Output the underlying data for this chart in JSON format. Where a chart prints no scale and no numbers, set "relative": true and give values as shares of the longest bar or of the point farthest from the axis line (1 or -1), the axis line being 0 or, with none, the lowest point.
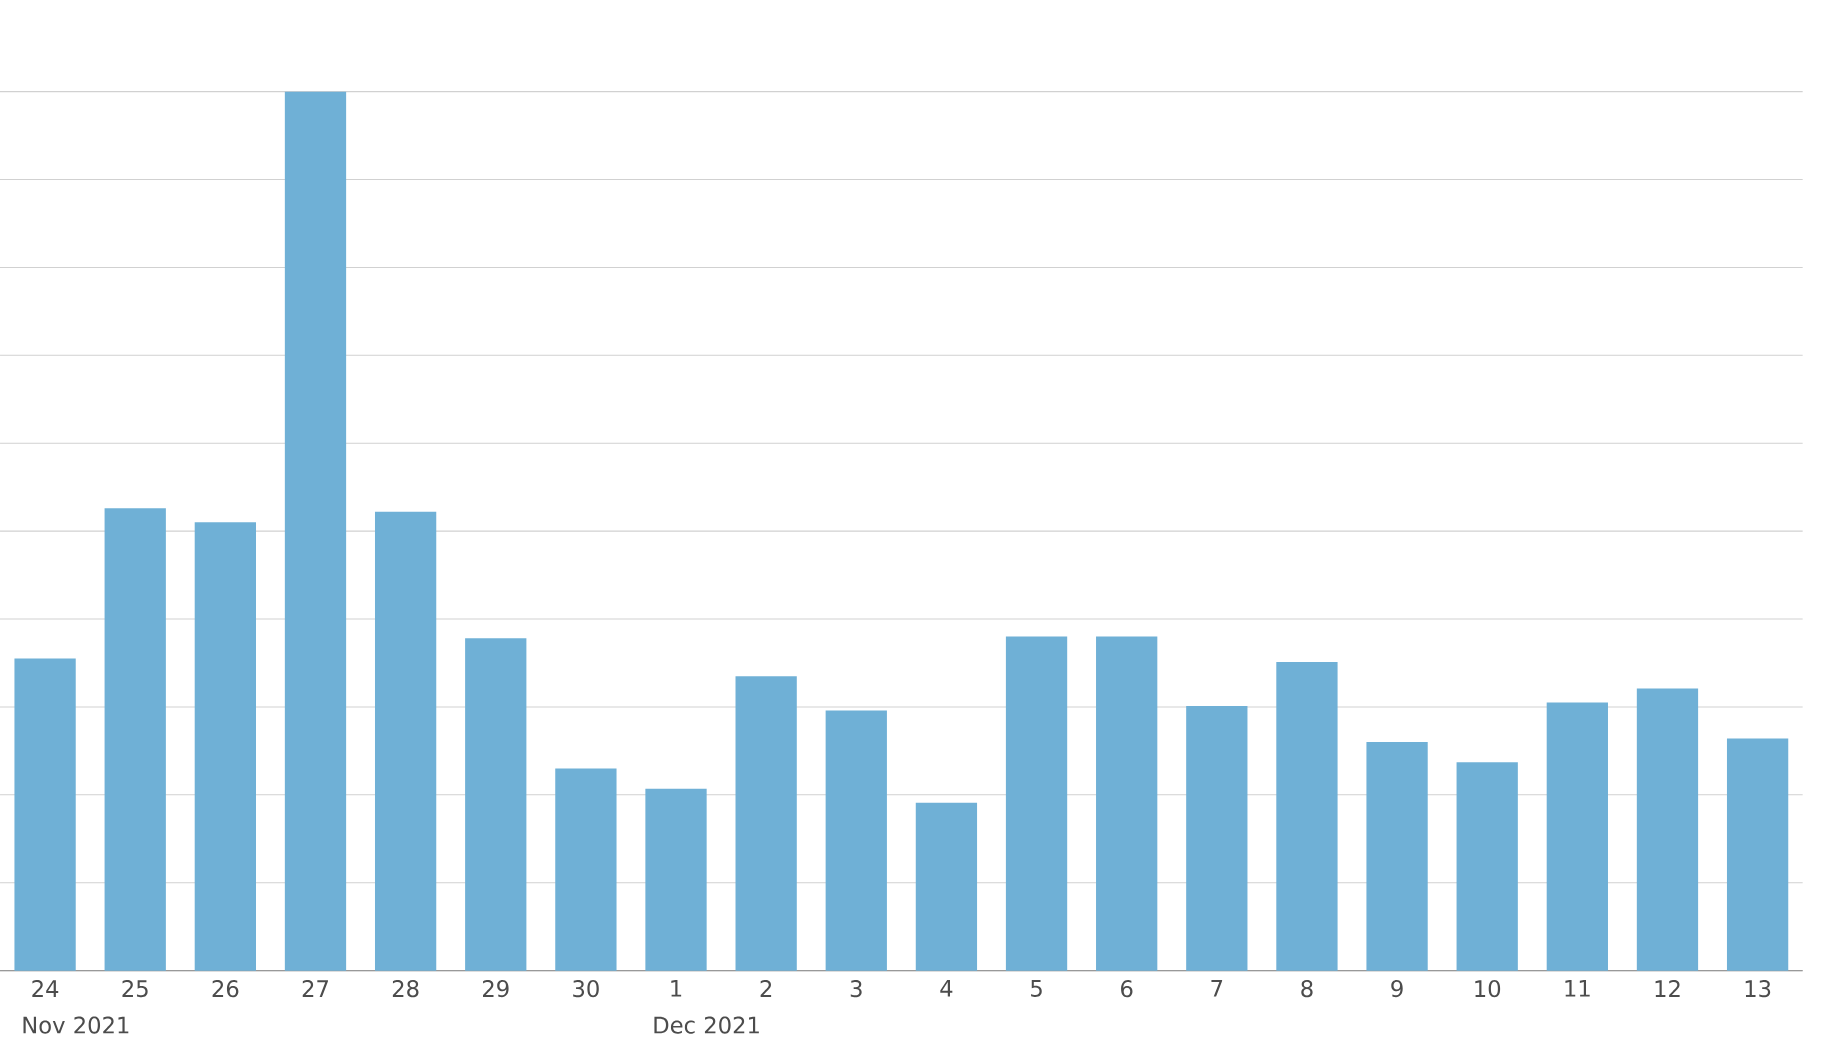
{
  "chart_data": {
    "type": "bar",
    "relative": true,
    "grid": "y",
    "color": "#6fb0d6",
    "categories": [
      "24",
      "25",
      "26",
      "27",
      "28",
      "29",
      "30",
      "1",
      "2",
      "3",
      "4",
      "5",
      "6",
      "7",
      "8",
      "9",
      "10",
      "11",
      "12",
      "13"
    ],
    "values": [
      0.355,
      0.526,
      0.51,
      1,
      0.522,
      0.378,
      0.23,
      0.207,
      0.335,
      0.296,
      0.191,
      0.38,
      0.38,
      0.301,
      0.351,
      0.26,
      0.237,
      0.305,
      0.321,
      0.264
    ],
    "annotations": [
      "Nov 2021",
      "Dec 2021"
    ]
  }
}
